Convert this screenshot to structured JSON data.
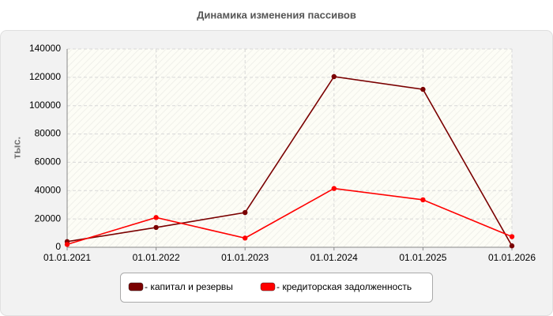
{
  "chart_data": {
    "type": "line",
    "title": "Динамика изменения пассивов",
    "y_label": "тыс.",
    "categories": [
      "01.01.2021",
      "01.01.2022",
      "01.01.2023",
      "01.01.2024",
      "01.01.2025",
      "01.01.2026"
    ],
    "series": [
      {
        "name": "- капитал и резервы",
        "color": "#7a0000",
        "values": [
          4000,
          14000,
          24500,
          120500,
          111500,
          1000
        ]
      },
      {
        "name": "- кредиторская задолженность",
        "color": "#ff0000",
        "values": [
          2000,
          21000,
          6500,
          41500,
          33500,
          7500
        ]
      }
    ],
    "ylim": [
      0,
      140000
    ],
    "yticks": [
      0,
      20000,
      40000,
      60000,
      80000,
      100000,
      120000,
      140000
    ],
    "grid": true
  }
}
